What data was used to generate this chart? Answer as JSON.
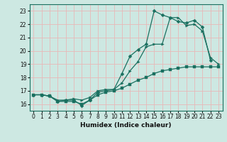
{
  "xlabel": "Humidex (Indice chaleur)",
  "xlim": [
    -0.5,
    23.5
  ],
  "ylim": [
    15.5,
    23.5
  ],
  "yticks": [
    16,
    17,
    18,
    19,
    20,
    21,
    22,
    23
  ],
  "xticks": [
    0,
    1,
    2,
    3,
    4,
    5,
    6,
    7,
    8,
    9,
    10,
    11,
    12,
    13,
    14,
    15,
    16,
    17,
    18,
    19,
    20,
    21,
    22,
    23
  ],
  "bg_color": "#cde8e2",
  "grid_color": "#e8b8b8",
  "line_color": "#1a7060",
  "line1_x": [
    0,
    1,
    2,
    3,
    4,
    5,
    6,
    7,
    8,
    9,
    10,
    11,
    12,
    13,
    14,
    15,
    16,
    17,
    18,
    19,
    20,
    21,
    22,
    23
  ],
  "line1_y": [
    16.7,
    16.7,
    16.6,
    16.2,
    16.2,
    16.2,
    16.0,
    16.3,
    16.7,
    16.9,
    17.0,
    17.2,
    17.5,
    17.8,
    18.0,
    18.3,
    18.5,
    18.6,
    18.7,
    18.8,
    18.8,
    18.8,
    18.8,
    18.8
  ],
  "line2_x": [
    0,
    1,
    2,
    3,
    4,
    5,
    6,
    7,
    8,
    9,
    10,
    11,
    12,
    13,
    14,
    15,
    16,
    17,
    18,
    19,
    20,
    21,
    22
  ],
  "line2_y": [
    16.7,
    16.7,
    16.6,
    16.2,
    16.3,
    16.3,
    15.9,
    16.3,
    16.9,
    17.0,
    17.1,
    18.3,
    19.6,
    20.1,
    20.5,
    23.0,
    22.7,
    22.5,
    22.2,
    22.1,
    22.3,
    21.8,
    19.3
  ],
  "line3_x": [
    0,
    1,
    2,
    3,
    4,
    5,
    6,
    7,
    8,
    9,
    10,
    11,
    12,
    13,
    14,
    15,
    16,
    17,
    18,
    19,
    20,
    21,
    22,
    23
  ],
  "line3_y": [
    16.7,
    16.7,
    16.6,
    16.3,
    16.3,
    16.4,
    16.3,
    16.5,
    17.0,
    17.1,
    17.1,
    17.6,
    18.5,
    19.2,
    20.3,
    20.5,
    20.5,
    22.5,
    22.5,
    21.9,
    22.0,
    21.5,
    19.5,
    19.0
  ]
}
